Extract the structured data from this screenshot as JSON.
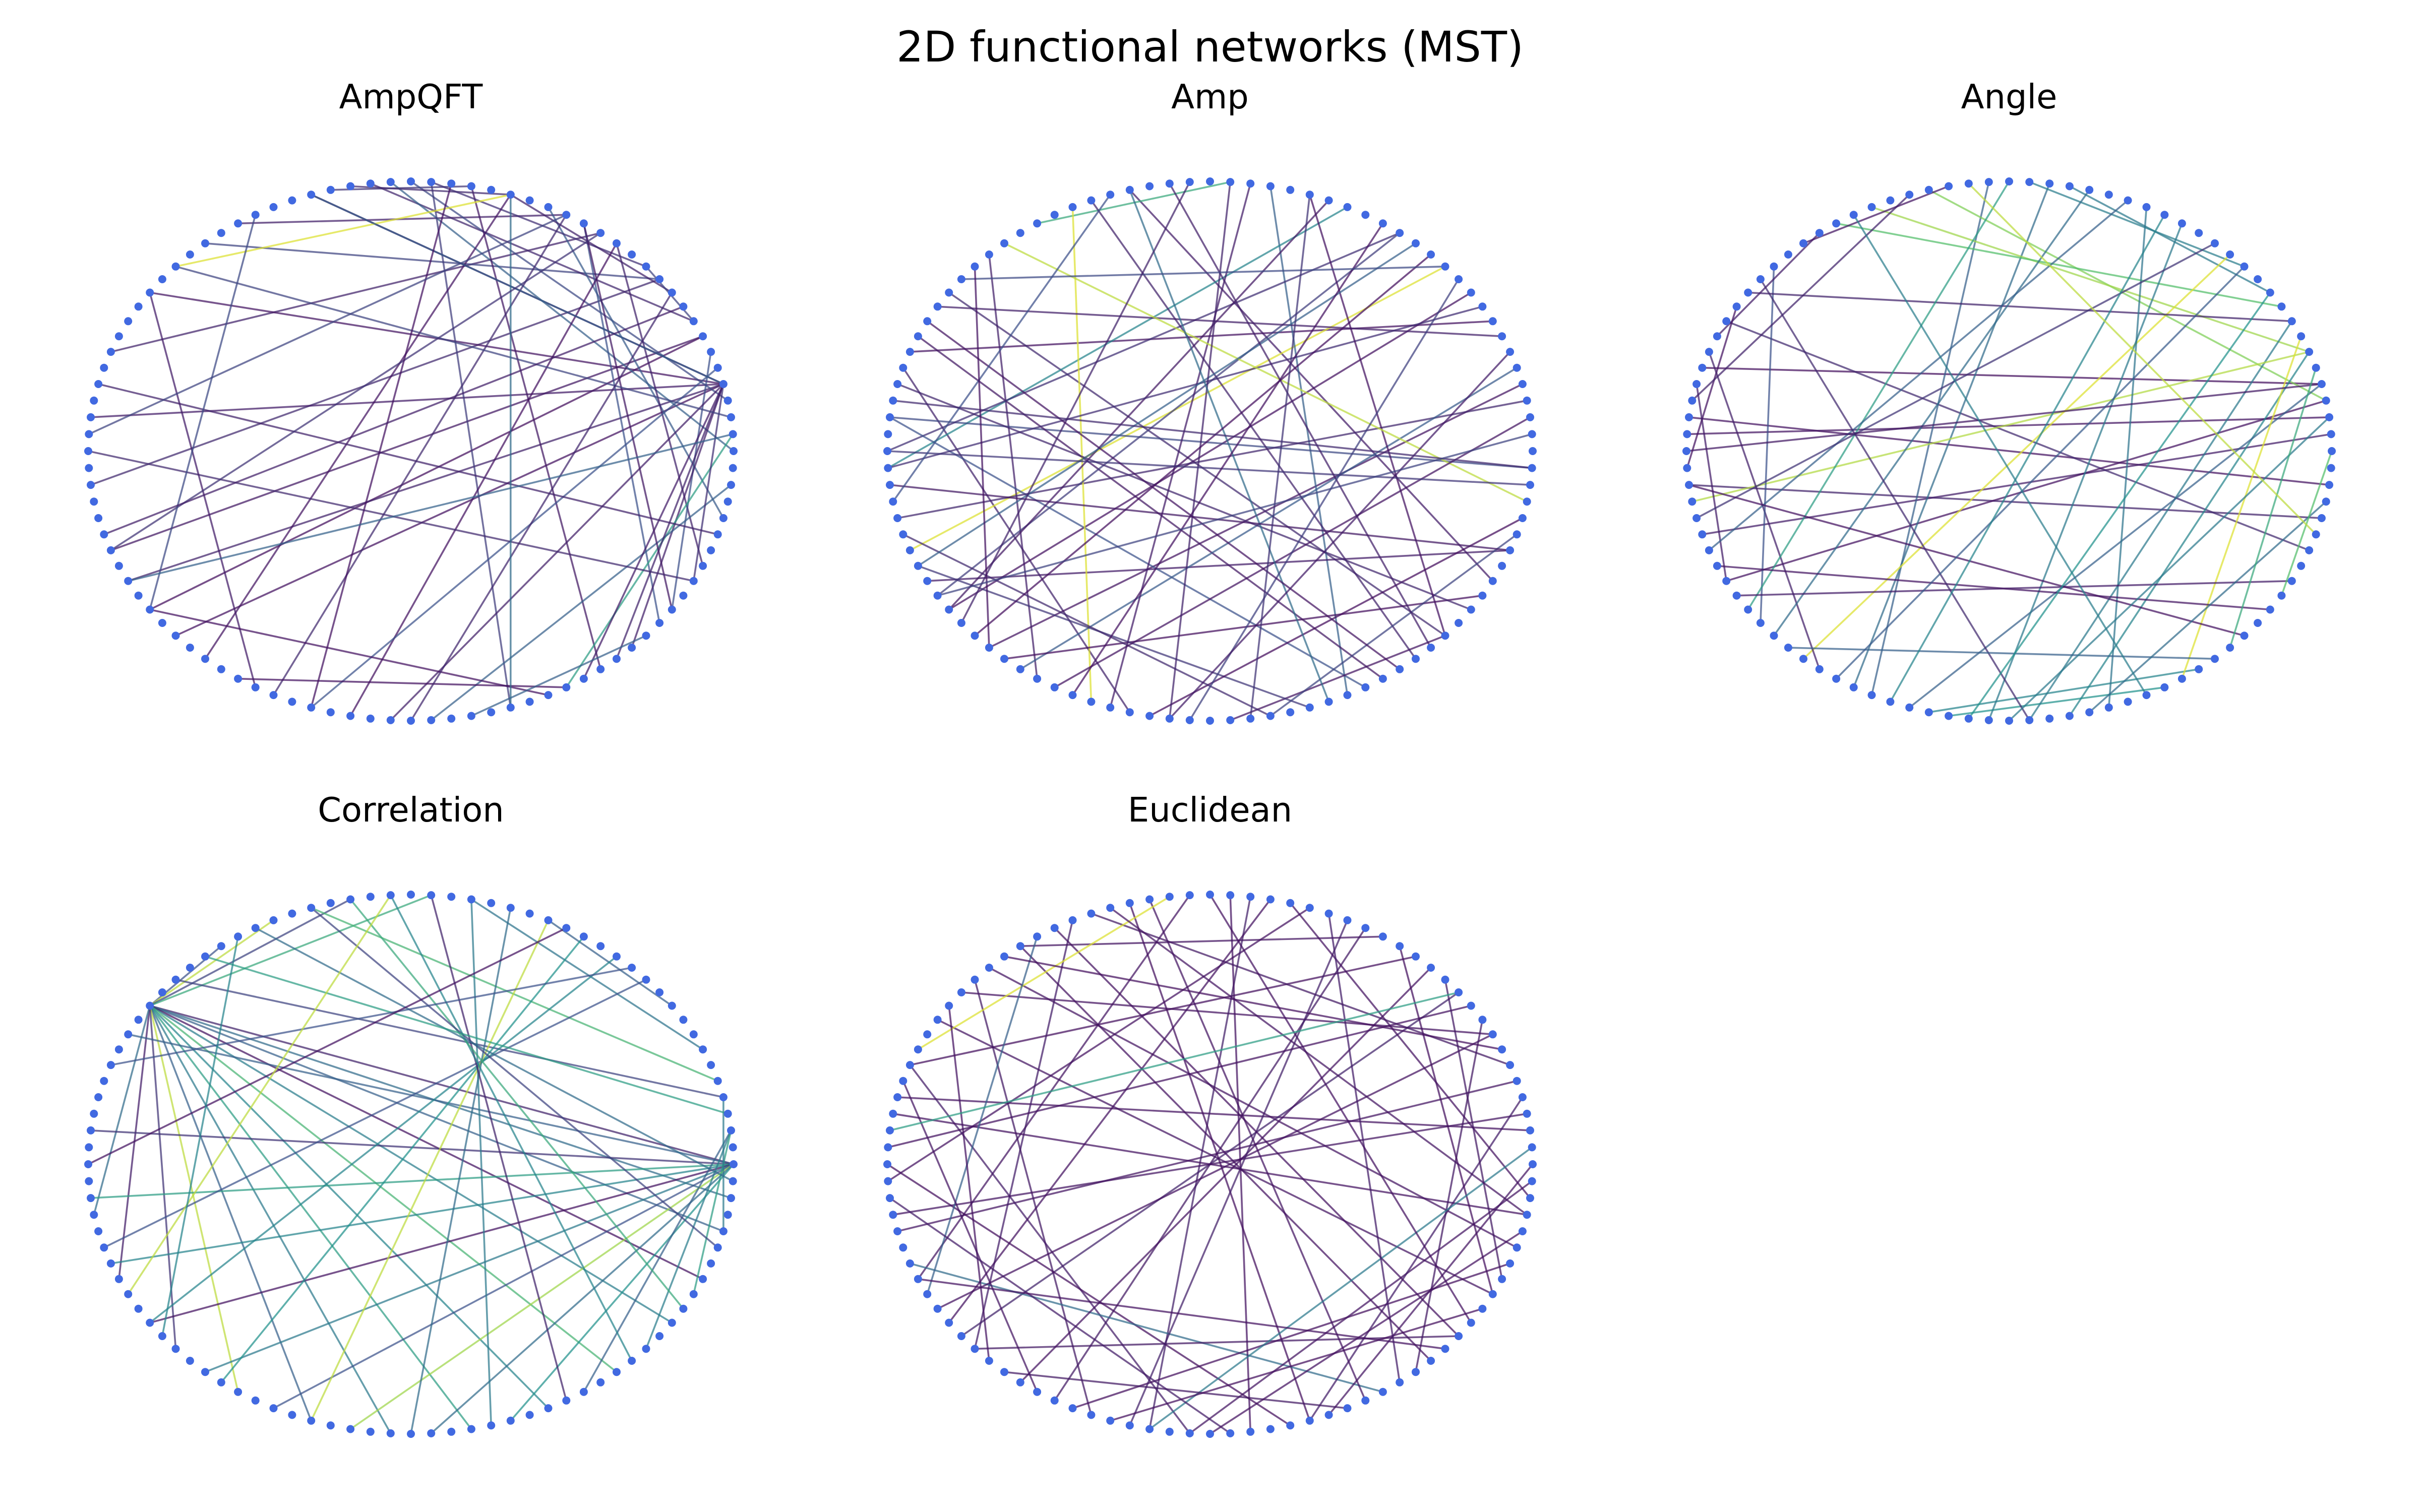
{
  "figure_title": "2D functional networks (MST)",
  "node_color": "#4169e1",
  "edge_colormap": [
    "#440154",
    "#3b528b",
    "#21918c",
    "#5ec962",
    "#fde725"
  ],
  "layout": "circular",
  "panels": [
    {
      "title": "AmpQFT",
      "num_nodes": 100,
      "edges": [
        [
          4,
          62,
          0.05
        ],
        [
          7,
          60,
          0.04
        ],
        [
          4,
          58,
          0.1
        ],
        [
          7,
          56,
          0.07
        ],
        [
          11,
          52,
          0.12
        ],
        [
          4,
          48,
          0.08
        ],
        [
          15,
          44,
          0.1
        ],
        [
          4,
          40,
          0.06
        ],
        [
          11,
          36,
          0.2
        ],
        [
          17,
          34,
          0.09
        ],
        [
          4,
          30,
          0.05
        ],
        [
          22,
          29,
          0.15
        ],
        [
          8,
          27,
          0.11
        ],
        [
          0,
          26,
          0.3
        ],
        [
          3,
          25,
          0.22
        ],
        [
          80,
          24,
          0.18
        ],
        [
          85,
          22,
          0.07
        ],
        [
          28,
          20,
          0.12
        ],
        [
          96,
          18,
          0.28
        ],
        [
          89,
          16,
          0.25
        ],
        [
          93,
          14,
          0.1
        ],
        [
          24,
          12,
          0.14
        ],
        [
          20,
          10,
          0.1
        ],
        [
          12,
          8,
          0.2
        ],
        [
          90,
          6,
          0.24
        ],
        [
          87,
          4,
          0.09
        ],
        [
          83,
          1,
          0.55
        ],
        [
          76,
          98,
          0.3
        ],
        [
          20,
          64,
          0.06
        ],
        [
          17,
          68,
          0.12
        ],
        [
          14,
          72,
          0.05
        ],
        [
          4,
          74,
          0.09
        ],
        [
          5,
          70,
          0.25
        ],
        [
          4,
          84,
          0.08
        ],
        [
          4,
          92,
          0.14
        ],
        [
          4,
          86,
          0.1
        ],
        [
          16,
          90,
          0.07
        ],
        [
          66,
          83,
          0.05
        ],
        [
          92,
          50,
          0.12
        ],
        [
          38,
          2,
          0.2
        ],
        [
          20,
          38,
          0.95
        ],
        [
          46,
          95,
          0.1
        ],
        [
          30,
          4,
          0.3
        ],
        [
          40,
          67,
          0.08
        ],
        [
          60,
          82,
          0.05
        ],
        [
          75,
          10,
          0.11
        ],
        [
          78,
          88,
          0.3
        ],
        [
          20,
          80,
          0.35
        ],
        [
          15,
          56,
          0.15
        ],
        [
          70,
          23,
          0.05
        ],
        [
          33,
          60,
          0.22
        ],
        [
          55,
          9,
          0.09
        ],
        [
          1,
          58,
          0.31
        ],
        [
          17,
          49,
          0.2
        ]
      ]
    },
    {
      "title": "Amp",
      "num_nodes": 100,
      "edges": [
        [
          8,
          44,
          0.05
        ],
        [
          45,
          71,
          0.1
        ],
        [
          29,
          92,
          0.08
        ],
        [
          56,
          12,
          0.95
        ],
        [
          4,
          63,
          0.06
        ],
        [
          40,
          88,
          0.12
        ],
        [
          22,
          82,
          0.3
        ],
        [
          66,
          37,
          0.09
        ],
        [
          51,
          18,
          0.45
        ],
        [
          60,
          10,
          0.05
        ],
        [
          99,
          48,
          0.22
        ],
        [
          43,
          84,
          0.07
        ],
        [
          15,
          50,
          0.14
        ],
        [
          34,
          24,
          0.6
        ],
        [
          58,
          94,
          0.08
        ],
        [
          48,
          83,
          0.25
        ],
        [
          3,
          54,
          0.11
        ],
        [
          32,
          69,
          0.95
        ],
        [
          76,
          88,
          0.06
        ],
        [
          5,
          65,
          0.28
        ],
        [
          86,
          31,
          0.1
        ],
        [
          59,
          15,
          0.18
        ],
        [
          64,
          91,
          0.04
        ],
        [
          57,
          80,
          0.16
        ],
        [
          41,
          7,
          0.09
        ],
        [
          78,
          95,
          0.2
        ],
        [
          72,
          96,
          0.03
        ],
        [
          19,
          60,
          0.07
        ],
        [
          9,
          51,
          0.13
        ],
        [
          46,
          90,
          0.11
        ],
        [
          70,
          23,
          0.08
        ],
        [
          88,
          20,
          0.05
        ],
        [
          36,
          97,
          0.9
        ],
        [
          55,
          78,
          0.12
        ],
        [
          14,
          57,
          0.3
        ],
        [
          67,
          2,
          0.06
        ],
        [
          24,
          73,
          0.1
        ],
        [
          81,
          29,
          0.35
        ],
        [
          13,
          62,
          0.04
        ],
        [
          50,
          98,
          0.16
        ],
        [
          27,
          87,
          0.09
        ],
        [
          68,
          16,
          0.05
        ],
        [
          39,
          12,
          0.22
        ],
        [
          94,
          52,
          0.07
        ],
        [
          11,
          74,
          0.19
        ],
        [
          61,
          26,
          0.1
        ],
        [
          85,
          42,
          0.06
        ],
        [
          30,
          53,
          0.24
        ],
        [
          73,
          6,
          0.08
        ],
        [
          47,
          99,
          0.12
        ],
        [
          20,
          77,
          0.15
        ],
        [
          63,
          38,
          0.05
        ],
        [
          1,
          59,
          0.2
        ]
      ]
    },
    {
      "title": "Angle",
      "num_nodes": 100,
      "edges": [
        [
          48,
          98,
          0.05
        ],
        [
          49,
          2,
          0.06
        ],
        [
          45,
          4,
          0.04
        ],
        [
          52,
          96,
          0.1
        ],
        [
          55,
          1,
          0.08
        ],
        [
          42,
          94,
          0.12
        ],
        [
          58,
          3,
          0.05
        ],
        [
          68,
          26,
          0.3
        ],
        [
          67,
          23,
          0.35
        ],
        [
          72,
          83,
          0.5
        ],
        [
          71,
          85,
          0.45
        ],
        [
          29,
          3,
          0.8
        ],
        [
          32,
          6,
          0.85
        ],
        [
          34,
          9,
          0.7
        ],
        [
          10,
          22,
          0.4
        ],
        [
          12,
          24,
          0.42
        ],
        [
          8,
          76,
          0.4
        ],
        [
          6,
          78,
          0.45
        ],
        [
          4,
          70,
          0.3
        ],
        [
          53,
          6,
          0.88
        ],
        [
          13,
          64,
          0.95
        ],
        [
          7,
          84,
          0.95
        ],
        [
          41,
          51,
          0.05
        ],
        [
          46,
          58,
          0.08
        ],
        [
          44,
          65,
          0.09
        ],
        [
          38,
          61,
          0.25
        ],
        [
          40,
          8,
          0.1
        ],
        [
          62,
          21,
          0.35
        ],
        [
          60,
          25,
          0.55
        ],
        [
          16,
          74,
          0.4
        ],
        [
          18,
          80,
          0.38
        ],
        [
          56,
          19,
          0.3
        ],
        [
          54,
          14,
          0.15
        ],
        [
          59,
          92,
          0.08
        ],
        [
          57,
          90,
          0.06
        ],
        [
          52,
          88,
          0.05
        ],
        [
          50,
          4,
          0.07
        ],
        [
          47,
          30,
          0.1
        ],
        [
          43,
          35,
          0.08
        ],
        [
          39,
          76,
          0.12
        ],
        [
          36,
          28,
          0.06
        ],
        [
          63,
          86,
          0.3
        ],
        [
          66,
          12,
          0.28
        ],
        [
          69,
          17,
          0.45
        ],
        [
          73,
          10,
          0.5
        ],
        [
          75,
          2,
          0.4
        ],
        [
          79,
          97,
          0.35
        ],
        [
          82,
          33,
          0.42
        ],
        [
          87,
          5,
          0.6
        ],
        [
          91,
          0,
          0.7
        ],
        [
          95,
          27,
          0.9
        ]
      ]
    },
    {
      "title": "Correlation",
      "num_nodes": 100,
      "edges": [
        [
          40,
          0,
          0.1
        ],
        [
          40,
          98,
          0.35
        ],
        [
          40,
          96,
          0.3
        ],
        [
          40,
          93,
          0.05
        ],
        [
          40,
          90,
          0.42
        ],
        [
          40,
          86,
          0.65
        ],
        [
          40,
          82,
          0.45
        ],
        [
          40,
          78,
          0.55
        ],
        [
          40,
          74,
          0.4
        ],
        [
          40,
          70,
          0.3
        ],
        [
          40,
          66,
          0.9
        ],
        [
          40,
          62,
          0.15
        ],
        [
          40,
          57,
          0.08
        ],
        [
          40,
          53,
          0.35
        ],
        [
          40,
          35,
          0.25
        ],
        [
          40,
          32,
          0.9
        ],
        [
          40,
          28,
          0.2
        ],
        [
          40,
          24,
          0.6
        ],
        [
          0,
          42,
          0.3
        ],
        [
          0,
          48,
          0.15
        ],
        [
          0,
          52,
          0.55
        ],
        [
          0,
          56,
          0.45
        ],
        [
          0,
          60,
          0.05
        ],
        [
          0,
          64,
          0.4
        ],
        [
          0,
          68,
          0.25
        ],
        [
          0,
          72,
          0.85
        ],
        [
          0,
          76,
          0.35
        ],
        [
          0,
          80,
          0.5
        ],
        [
          2,
          84,
          0.3
        ],
        [
          2,
          88,
          0.42
        ],
        [
          2,
          92,
          0.55
        ],
        [
          4,
          96,
          0.4
        ],
        [
          4,
          38,
          0.2
        ],
        [
          5,
          30,
          0.65
        ],
        [
          7,
          22,
          0.38
        ],
        [
          10,
          18,
          0.3
        ],
        [
          12,
          55,
          0.25
        ],
        [
          14,
          60,
          0.45
        ],
        [
          16,
          65,
          0.5
        ],
        [
          18,
          70,
          0.9
        ],
        [
          20,
          75,
          0.35
        ],
        [
          22,
          79,
          0.4
        ],
        [
          24,
          83,
          0.1
        ],
        [
          26,
          87,
          0.45
        ],
        [
          28,
          91,
          0.6
        ],
        [
          30,
          95,
          0.2
        ],
        [
          33,
          99,
          0.35
        ],
        [
          36,
          3,
          0.55
        ],
        [
          44,
          13,
          0.25
        ],
        [
          50,
          17,
          0.05
        ],
        [
          58,
          26,
          0.9
        ],
        [
          61,
          34,
          0.45
        ]
      ]
    },
    {
      "title": "Euclidean",
      "num_nodes": 100,
      "edges": [
        [
          2,
          46,
          0.05
        ],
        [
          5,
          54,
          0.06
        ],
        [
          8,
          39,
          0.05
        ],
        [
          11,
          61,
          0.1
        ],
        [
          14,
          44,
          0.04
        ],
        [
          17,
          67,
          0.07
        ],
        [
          20,
          51,
          0.05
        ],
        [
          23,
          72,
          0.09
        ],
        [
          26,
          57,
          0.06
        ],
        [
          29,
          80,
          0.04
        ],
        [
          32,
          62,
          0.08
        ],
        [
          35,
          87,
          0.05
        ],
        [
          38,
          69,
          0.07
        ],
        [
          41,
          92,
          0.06
        ],
        [
          44,
          74,
          0.08
        ],
        [
          47,
          97,
          0.05
        ],
        [
          50,
          79,
          0.04
        ],
        [
          53,
          3,
          0.06
        ],
        [
          56,
          84,
          0.35
        ],
        [
          59,
          8,
          0.05
        ],
        [
          62,
          89,
          0.07
        ],
        [
          65,
          13,
          0.05
        ],
        [
          68,
          94,
          0.04
        ],
        [
          71,
          18,
          0.09
        ],
        [
          74,
          99,
          0.06
        ],
        [
          77,
          24,
          0.05
        ],
        [
          80,
          4,
          0.08
        ],
        [
          83,
          28,
          0.06
        ],
        [
          86,
          9,
          0.07
        ],
        [
          89,
          33,
          0.05
        ],
        [
          92,
          15,
          0.04
        ],
        [
          95,
          37,
          0.06
        ],
        [
          98,
          21,
          0.05
        ],
        [
          1,
          72,
          0.4
        ],
        [
          6,
          31,
          0.07
        ],
        [
          10,
          49,
          0.05
        ],
        [
          16,
          35,
          0.06
        ],
        [
          27,
          43,
          0.95
        ],
        [
          34,
          58,
          0.3
        ],
        [
          40,
          63,
          0.05
        ],
        [
          45,
          66,
          0.06
        ],
        [
          52,
          76,
          0.08
        ],
        [
          57,
          88,
          0.05
        ],
        [
          64,
          82,
          0.07
        ],
        [
          70,
          91,
          0.04
        ],
        [
          75,
          96,
          0.05
        ],
        [
          81,
          0,
          0.06
        ],
        [
          85,
          19,
          0.08
        ],
        [
          90,
          25,
          0.05
        ],
        [
          93,
          12,
          0.07
        ],
        [
          97,
          30,
          0.06
        ],
        [
          60,
          22,
          0.05
        ],
        [
          36,
          7,
          0.04
        ],
        [
          48,
          11,
          0.55
        ]
      ]
    }
  ]
}
